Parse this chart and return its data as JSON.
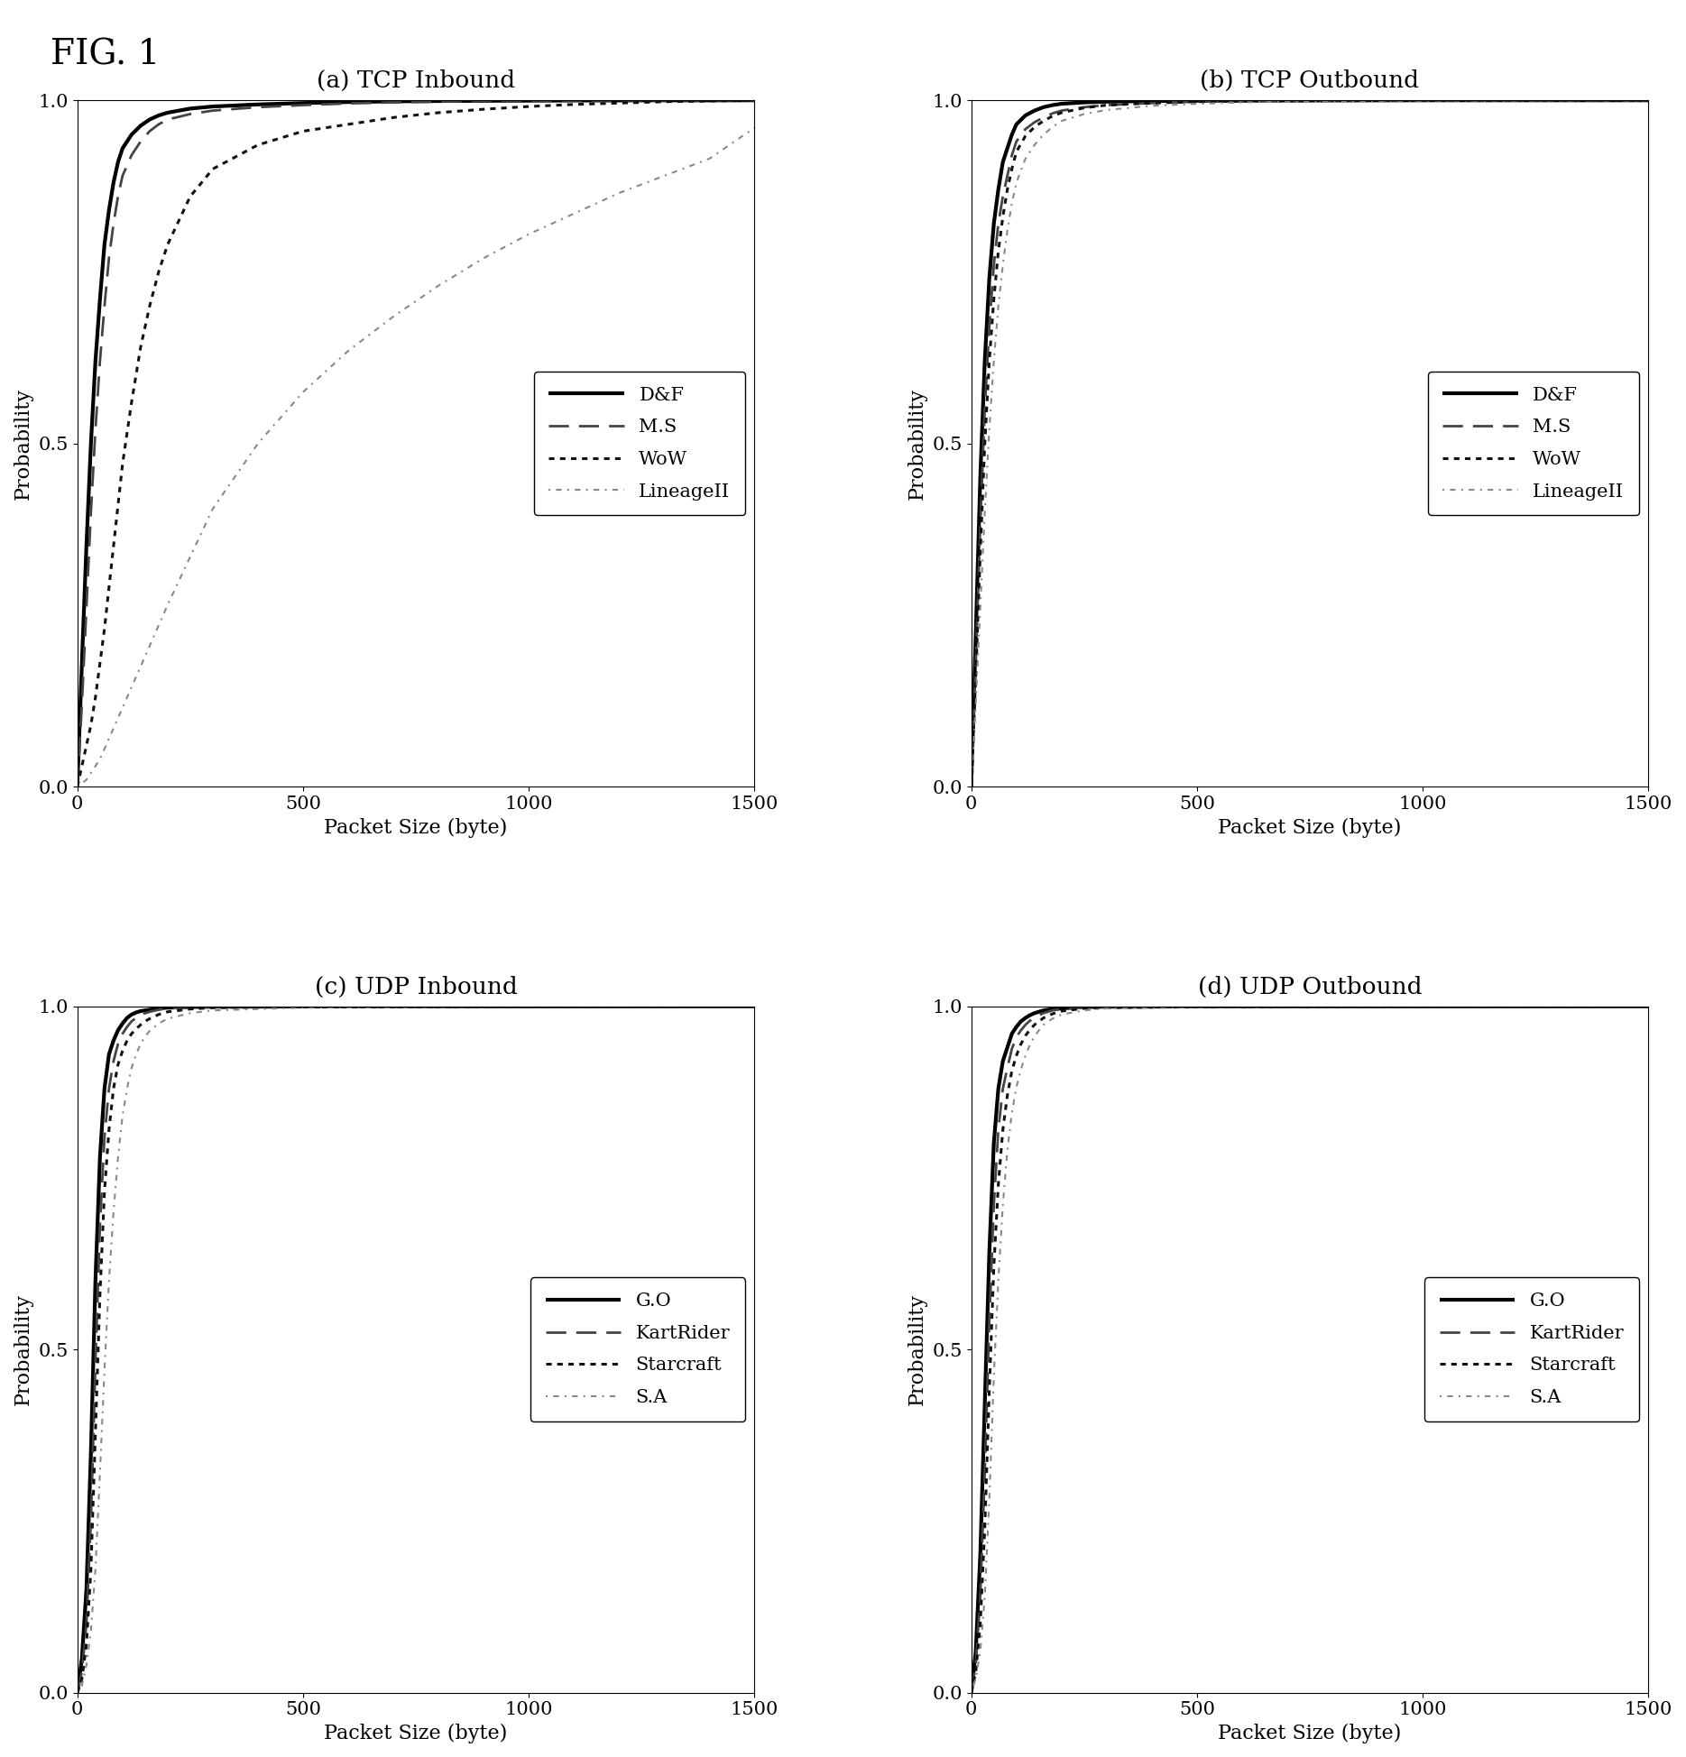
{
  "fig_title": "FIG. 1",
  "subplots": [
    {
      "title": "(a) TCP Inbound",
      "xlabel": "Packet Size (byte)",
      "ylabel": "Probability",
      "xlim": [
        0,
        1500
      ],
      "ylim": [
        0,
        1.0
      ],
      "yticks": [
        0,
        0.5,
        1
      ],
      "xticks": [
        0,
        500,
        1000,
        1500
      ],
      "series": [
        {
          "label": "D&F",
          "style": "solid",
          "color": "#000000",
          "linewidth": 3.0,
          "x": [
            0,
            10,
            20,
            30,
            40,
            50,
            60,
            70,
            80,
            90,
            100,
            120,
            140,
            160,
            180,
            200,
            250,
            300,
            400,
            500,
            600,
            700,
            800,
            900,
            1000,
            1100,
            1200,
            1300,
            1400,
            1500
          ],
          "y": [
            0,
            0.18,
            0.35,
            0.5,
            0.62,
            0.71,
            0.79,
            0.84,
            0.88,
            0.91,
            0.93,
            0.95,
            0.963,
            0.972,
            0.978,
            0.982,
            0.988,
            0.991,
            0.994,
            0.996,
            0.9975,
            0.9985,
            0.999,
            0.9993,
            0.9995,
            0.9997,
            0.9998,
            0.9999,
            0.9999,
            1.0
          ]
        },
        {
          "label": "M.S",
          "style": "dashed",
          "color": "#444444",
          "linewidth": 2.0,
          "x": [
            0,
            10,
            20,
            30,
            40,
            50,
            60,
            70,
            80,
            90,
            100,
            120,
            140,
            160,
            180,
            200,
            250,
            300,
            400,
            500,
            600,
            700,
            800,
            900,
            1000,
            1100,
            1200,
            1300,
            1400,
            1500
          ],
          "y": [
            0,
            0.12,
            0.26,
            0.4,
            0.52,
            0.62,
            0.7,
            0.77,
            0.82,
            0.86,
            0.89,
            0.92,
            0.94,
            0.955,
            0.965,
            0.972,
            0.98,
            0.985,
            0.99,
            0.993,
            0.9955,
            0.997,
            0.998,
            0.999,
            0.9993,
            0.9995,
            0.9997,
            0.9998,
            0.9999,
            1.0
          ]
        },
        {
          "label": "WoW",
          "style": "dotted",
          "color": "#111111",
          "linewidth": 2.2,
          "x": [
            0,
            10,
            20,
            30,
            40,
            50,
            60,
            70,
            80,
            90,
            100,
            120,
            140,
            160,
            180,
            200,
            250,
            300,
            400,
            500,
            600,
            700,
            800,
            900,
            1000,
            1100,
            1200,
            1300,
            1400,
            1500
          ],
          "y": [
            0,
            0.03,
            0.06,
            0.09,
            0.13,
            0.18,
            0.23,
            0.29,
            0.35,
            0.41,
            0.47,
            0.56,
            0.64,
            0.7,
            0.75,
            0.79,
            0.86,
            0.9,
            0.935,
            0.955,
            0.965,
            0.975,
            0.982,
            0.987,
            0.991,
            0.994,
            0.996,
            0.998,
            0.999,
            1.0
          ]
        },
        {
          "label": "LineageII",
          "style": "dot_dash",
          "color": "#888888",
          "linewidth": 1.5,
          "x": [
            0,
            10,
            20,
            30,
            40,
            50,
            60,
            70,
            80,
            90,
            100,
            120,
            140,
            160,
            180,
            200,
            250,
            300,
            400,
            500,
            600,
            700,
            800,
            900,
            1000,
            1100,
            1200,
            1300,
            1400,
            1500
          ],
          "y": [
            0,
            0.005,
            0.01,
            0.02,
            0.03,
            0.04,
            0.055,
            0.07,
            0.085,
            0.1,
            0.115,
            0.145,
            0.175,
            0.205,
            0.235,
            0.265,
            0.335,
            0.405,
            0.5,
            0.575,
            0.635,
            0.685,
            0.73,
            0.77,
            0.805,
            0.835,
            0.865,
            0.89,
            0.915,
            0.96
          ]
        }
      ]
    },
    {
      "title": "(b) TCP Outbound",
      "xlabel": "Packet Size (byte)",
      "ylabel": "Probability",
      "xlim": [
        0,
        1500
      ],
      "ylim": [
        0,
        1.0
      ],
      "yticks": [
        0,
        0.5,
        1
      ],
      "xticks": [
        0,
        500,
        1000,
        1500
      ],
      "series": [
        {
          "label": "D&F",
          "style": "solid",
          "color": "#000000",
          "linewidth": 3.0,
          "x": [
            0,
            10,
            20,
            30,
            40,
            50,
            60,
            70,
            80,
            90,
            100,
            120,
            140,
            160,
            180,
            200,
            250,
            300,
            400,
            500,
            600,
            700,
            800,
            900,
            1000,
            1500
          ],
          "y": [
            0,
            0.22,
            0.45,
            0.62,
            0.74,
            0.82,
            0.87,
            0.91,
            0.93,
            0.95,
            0.965,
            0.978,
            0.985,
            0.99,
            0.993,
            0.995,
            0.997,
            0.998,
            0.999,
            0.9993,
            0.9996,
            0.9997,
            0.9998,
            0.9999,
            1.0,
            1.0
          ]
        },
        {
          "label": "M.S",
          "style": "dashed",
          "color": "#444444",
          "linewidth": 2.0,
          "x": [
            0,
            10,
            20,
            30,
            40,
            50,
            60,
            70,
            80,
            90,
            100,
            120,
            140,
            160,
            180,
            200,
            250,
            300,
            400,
            500,
            600,
            700,
            800,
            900,
            1000,
            1500
          ],
          "y": [
            0,
            0.18,
            0.38,
            0.55,
            0.67,
            0.76,
            0.82,
            0.86,
            0.89,
            0.92,
            0.94,
            0.958,
            0.968,
            0.975,
            0.981,
            0.985,
            0.99,
            0.993,
            0.996,
            0.998,
            0.999,
            0.9993,
            0.9996,
            0.9997,
            0.9998,
            1.0
          ]
        },
        {
          "label": "WoW",
          "style": "dotted",
          "color": "#111111",
          "linewidth": 2.2,
          "x": [
            0,
            10,
            20,
            30,
            40,
            50,
            60,
            70,
            80,
            90,
            100,
            120,
            140,
            160,
            180,
            200,
            250,
            300,
            400,
            500,
            600,
            700,
            800,
            900,
            1000,
            1500
          ],
          "y": [
            0,
            0.16,
            0.34,
            0.5,
            0.62,
            0.71,
            0.78,
            0.83,
            0.87,
            0.9,
            0.925,
            0.948,
            0.961,
            0.97,
            0.977,
            0.982,
            0.989,
            0.993,
            0.996,
            0.998,
            0.999,
            0.9993,
            0.9996,
            0.9997,
            0.9998,
            1.0
          ]
        },
        {
          "label": "LineageII",
          "style": "dot_dash",
          "color": "#888888",
          "linewidth": 1.5,
          "x": [
            0,
            10,
            20,
            30,
            40,
            50,
            60,
            70,
            80,
            90,
            100,
            120,
            140,
            160,
            180,
            200,
            250,
            300,
            400,
            500,
            600,
            700,
            800,
            900,
            1000,
            1500
          ],
          "y": [
            0,
            0.12,
            0.26,
            0.4,
            0.52,
            0.62,
            0.7,
            0.76,
            0.81,
            0.85,
            0.88,
            0.915,
            0.935,
            0.95,
            0.961,
            0.97,
            0.98,
            0.986,
            0.992,
            0.995,
            0.997,
            0.998,
            0.999,
            0.9993,
            0.9996,
            1.0
          ]
        }
      ]
    },
    {
      "title": "(c) UDP Inbound",
      "xlabel": "Packet Size (byte)",
      "ylabel": "Probability",
      "xlim": [
        0,
        1500
      ],
      "ylim": [
        0,
        1.0
      ],
      "yticks": [
        0,
        0.5,
        1
      ],
      "xticks": [
        0,
        500,
        1000,
        1500
      ],
      "series": [
        {
          "label": "G.O",
          "style": "solid",
          "color": "#000000",
          "linewidth": 3.0,
          "x": [
            0,
            10,
            20,
            30,
            40,
            50,
            60,
            70,
            80,
            90,
            100,
            110,
            120,
            130,
            140,
            150,
            160,
            180,
            200,
            250,
            300,
            500,
            1000,
            1500
          ],
          "y": [
            0,
            0.05,
            0.15,
            0.35,
            0.6,
            0.78,
            0.88,
            0.93,
            0.95,
            0.965,
            0.975,
            0.983,
            0.988,
            0.991,
            0.993,
            0.994,
            0.995,
            0.997,
            0.998,
            0.999,
            0.9993,
            0.9997,
            0.9999,
            1.0
          ]
        },
        {
          "label": "KartRider",
          "style": "dashed",
          "color": "#444444",
          "linewidth": 2.0,
          "x": [
            0,
            10,
            20,
            30,
            40,
            50,
            60,
            70,
            80,
            90,
            100,
            110,
            120,
            130,
            140,
            150,
            160,
            180,
            200,
            250,
            300,
            500,
            1000,
            1500
          ],
          "y": [
            0,
            0.03,
            0.1,
            0.25,
            0.48,
            0.68,
            0.81,
            0.88,
            0.92,
            0.945,
            0.96,
            0.97,
            0.978,
            0.983,
            0.987,
            0.99,
            0.992,
            0.995,
            0.997,
            0.998,
            0.999,
            0.9995,
            0.9999,
            1.0
          ]
        },
        {
          "label": "Starcraft",
          "style": "dotted",
          "color": "#111111",
          "linewidth": 2.2,
          "x": [
            0,
            10,
            20,
            30,
            40,
            50,
            60,
            70,
            80,
            90,
            100,
            110,
            120,
            130,
            140,
            150,
            160,
            180,
            200,
            250,
            300,
            500,
            1000,
            1500
          ],
          "y": [
            0,
            0.02,
            0.07,
            0.18,
            0.38,
            0.58,
            0.73,
            0.82,
            0.88,
            0.915,
            0.935,
            0.95,
            0.96,
            0.967,
            0.973,
            0.978,
            0.982,
            0.988,
            0.992,
            0.996,
            0.998,
            0.9993,
            0.9998,
            1.0
          ]
        },
        {
          "label": "S.A",
          "style": "dot_dash",
          "color": "#888888",
          "linewidth": 1.5,
          "x": [
            0,
            10,
            20,
            30,
            40,
            50,
            60,
            70,
            80,
            90,
            100,
            110,
            120,
            130,
            140,
            150,
            160,
            180,
            200,
            250,
            300,
            500,
            1000,
            1500
          ],
          "y": [
            0,
            0.01,
            0.04,
            0.09,
            0.18,
            0.32,
            0.47,
            0.6,
            0.7,
            0.78,
            0.84,
            0.88,
            0.91,
            0.93,
            0.945,
            0.956,
            0.964,
            0.975,
            0.982,
            0.99,
            0.994,
            0.998,
            0.9995,
            1.0
          ]
        }
      ]
    },
    {
      "title": "(d) UDP Outbound",
      "xlabel": "Packet Size (byte)",
      "ylabel": "Probability",
      "xlim": [
        0,
        1500
      ],
      "ylim": [
        0,
        1.0
      ],
      "yticks": [
        0,
        0.5,
        1
      ],
      "xticks": [
        0,
        500,
        1000,
        1500
      ],
      "series": [
        {
          "label": "G.O",
          "style": "solid",
          "color": "#000000",
          "linewidth": 3.0,
          "x": [
            0,
            10,
            20,
            30,
            40,
            50,
            60,
            70,
            80,
            90,
            100,
            110,
            120,
            130,
            140,
            150,
            160,
            180,
            200,
            250,
            300,
            500,
            1000,
            1500
          ],
          "y": [
            0,
            0.06,
            0.2,
            0.42,
            0.64,
            0.8,
            0.88,
            0.92,
            0.94,
            0.96,
            0.97,
            0.978,
            0.983,
            0.987,
            0.99,
            0.992,
            0.994,
            0.996,
            0.997,
            0.999,
            0.9993,
            0.9997,
            0.9999,
            1.0
          ]
        },
        {
          "label": "KartRider",
          "style": "dashed",
          "color": "#444444",
          "linewidth": 2.0,
          "x": [
            0,
            10,
            20,
            30,
            40,
            50,
            60,
            70,
            80,
            90,
            100,
            110,
            120,
            130,
            140,
            150,
            160,
            180,
            200,
            250,
            300,
            500,
            1000,
            1500
          ],
          "y": [
            0,
            0.04,
            0.14,
            0.32,
            0.54,
            0.71,
            0.82,
            0.88,
            0.91,
            0.938,
            0.955,
            0.965,
            0.973,
            0.979,
            0.983,
            0.987,
            0.99,
            0.994,
            0.996,
            0.998,
            0.999,
            0.9993,
            0.9998,
            1.0
          ]
        },
        {
          "label": "Starcraft",
          "style": "dotted",
          "color": "#111111",
          "linewidth": 2.2,
          "x": [
            0,
            10,
            20,
            30,
            40,
            50,
            60,
            70,
            80,
            90,
            100,
            110,
            120,
            130,
            140,
            150,
            160,
            180,
            200,
            250,
            300,
            500,
            1000,
            1500
          ],
          "y": [
            0,
            0.03,
            0.1,
            0.24,
            0.44,
            0.62,
            0.74,
            0.82,
            0.87,
            0.906,
            0.928,
            0.945,
            0.957,
            0.966,
            0.973,
            0.978,
            0.983,
            0.989,
            0.993,
            0.997,
            0.998,
            0.9993,
            0.9998,
            1.0
          ]
        },
        {
          "label": "S.A",
          "style": "dot_dash",
          "color": "#888888",
          "linewidth": 1.5,
          "x": [
            0,
            10,
            20,
            30,
            40,
            50,
            60,
            70,
            80,
            90,
            100,
            110,
            120,
            130,
            140,
            150,
            160,
            180,
            200,
            250,
            300,
            500,
            1000,
            1500
          ],
          "y": [
            0,
            0.02,
            0.06,
            0.14,
            0.28,
            0.46,
            0.6,
            0.71,
            0.79,
            0.845,
            0.882,
            0.908,
            0.928,
            0.944,
            0.956,
            0.965,
            0.973,
            0.982,
            0.988,
            0.994,
            0.997,
            0.999,
            0.9995,
            1.0
          ]
        }
      ]
    }
  ],
  "background_color": "#ffffff",
  "fig_title_fontsize": 28,
  "title_fontsize": 19,
  "label_fontsize": 16,
  "tick_fontsize": 15,
  "legend_fontsize": 15
}
